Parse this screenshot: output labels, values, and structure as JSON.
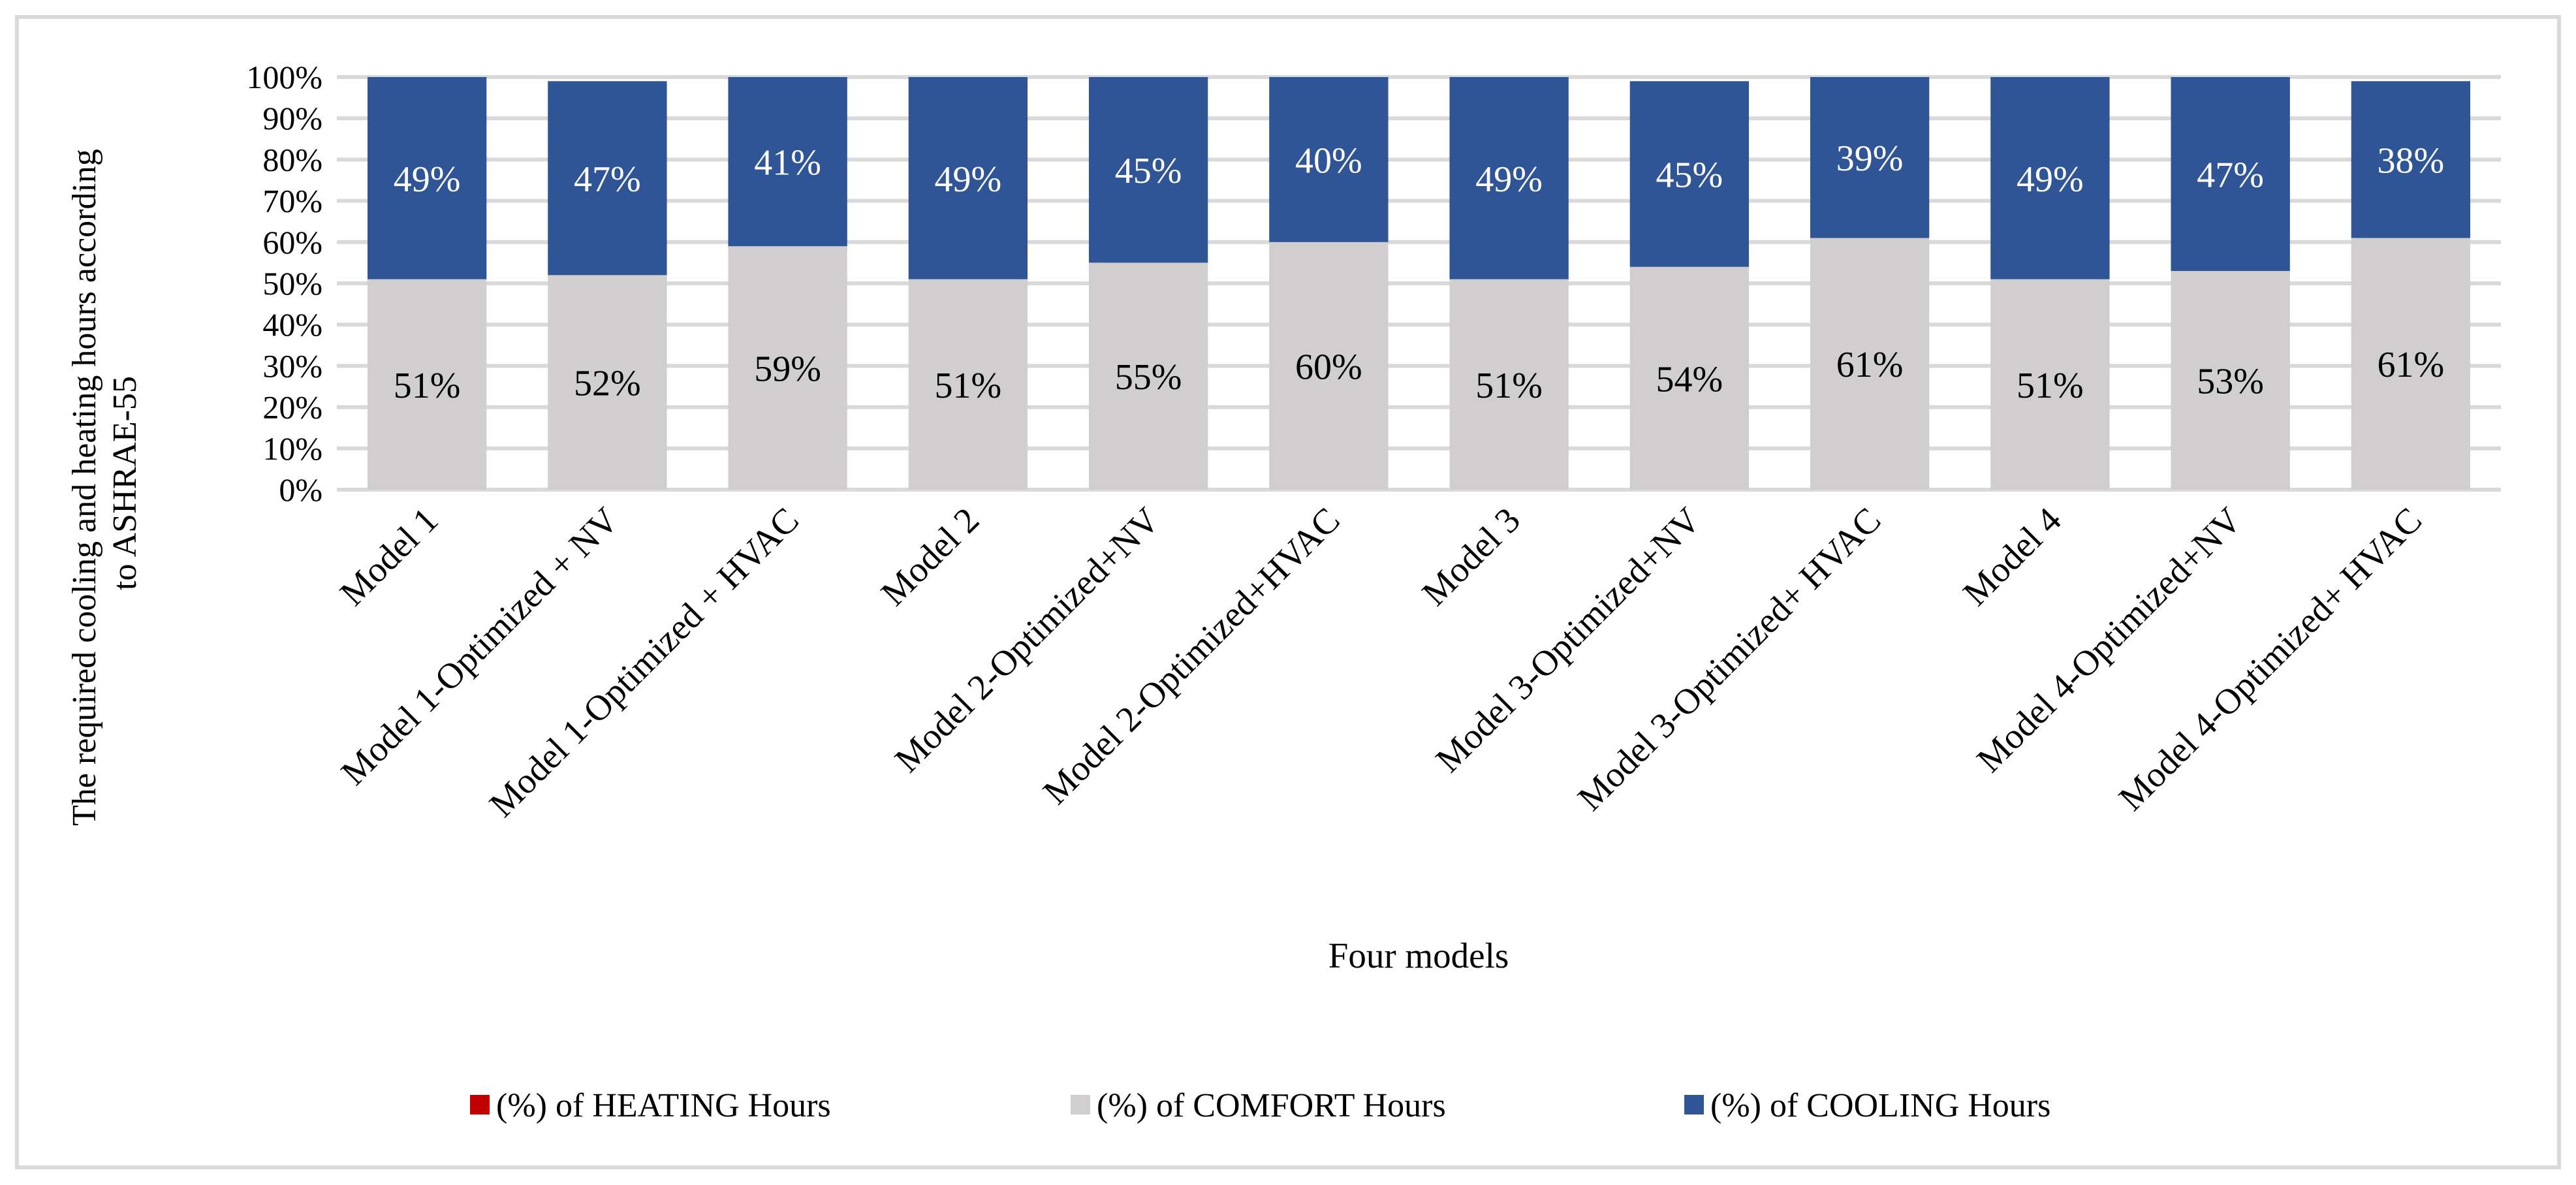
{
  "chart_data": {
    "type": "bar",
    "stacked": true,
    "percent_stacked": true,
    "title": "",
    "xlabel": "Four models",
    "ylabel": "The required cooling and heating hours according to ASHRAE-55",
    "ylabel_lines": [
      "The required cooling and heating hours according",
      "to ASHRAE-55"
    ],
    "ylim": [
      0,
      100
    ],
    "yticks": [
      "0%",
      "10%",
      "20%",
      "30%",
      "40%",
      "50%",
      "60%",
      "70%",
      "80%",
      "90%",
      "100%"
    ],
    "grid": true,
    "legend_position": "bottom",
    "categories": [
      "Model 1",
      "Model 1-Optimized + NV",
      "Model 1-Optimized + HVAC",
      "Model 2",
      "Model 2-Optimized+NV",
      "Model 2-Optimized+HVAC",
      "Model 3",
      "Model 3-Optimized+NV",
      "Model 3-Optimized+ HVAC",
      "Model 4",
      "Model 4-Optimized+NV",
      "Model 4-Optimized+ HVAC"
    ],
    "series": [
      {
        "name": "(%) of HEATING Hours",
        "color": "#C00000",
        "values": [
          0,
          0,
          0,
          0,
          0,
          0,
          0,
          0,
          0,
          0,
          0,
          0
        ],
        "labels": []
      },
      {
        "name": "(%) of COMFORT Hours",
        "color": "#D0CECE",
        "values": [
          51,
          52,
          59,
          51,
          55,
          60,
          51,
          54,
          61,
          51,
          53,
          61
        ],
        "labels": [
          "51%",
          "52%",
          "59%",
          "51%",
          "55%",
          "60%",
          "51%",
          "54%",
          "61%",
          "51%",
          "53%",
          "61%"
        ]
      },
      {
        "name": "(%)  of COOLING Hours",
        "color": "#2F5597",
        "values": [
          49,
          47,
          41,
          49,
          45,
          40,
          49,
          45,
          39,
          49,
          47,
          38
        ],
        "labels": [
          "49%",
          "47%",
          "41%",
          "49%",
          "45%",
          "40%",
          "49%",
          "45%",
          "39%",
          "49%",
          "47%",
          "38%"
        ]
      }
    ]
  }
}
